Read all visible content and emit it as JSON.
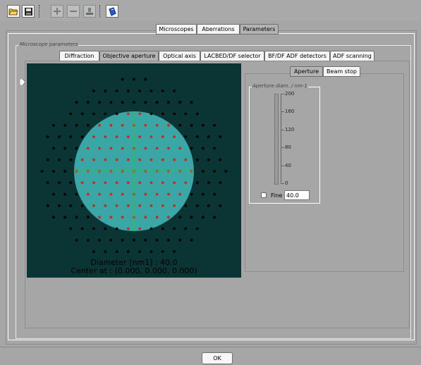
{
  "toolbar": {
    "buttons": [
      {
        "icon": "open-folder-icon",
        "enabled": true
      },
      {
        "icon": "save-disk-icon",
        "enabled": true
      },
      {
        "icon": "add-icon",
        "enabled": false
      },
      {
        "icon": "remove-icon",
        "enabled": false
      },
      {
        "icon": "export-icon",
        "enabled": false
      },
      {
        "icon": "help-book-icon",
        "enabled": true
      }
    ]
  },
  "main_tabs": [
    {
      "label": "Microscopes",
      "selected": false
    },
    {
      "label": "Aberrations",
      "selected": false
    },
    {
      "label": "Parameters",
      "selected": true
    }
  ],
  "group": {
    "title": "Microscope parameters"
  },
  "sub_tabs": [
    {
      "label": "Diffraction",
      "selected": false
    },
    {
      "label": "Objective aperture",
      "selected": true
    },
    {
      "label": "Optical axis",
      "selected": false
    },
    {
      "label": "LACBED/DF selector",
      "selected": false
    },
    {
      "label": "BF/DF ADF detectors",
      "selected": false
    },
    {
      "label": "ADF scanning",
      "selected": false
    }
  ],
  "diagram": {
    "diameter_text": "Diameter [nm1] : 40.0",
    "center_text": "Center at : (0.000, 0.000, 0.000)",
    "colors": {
      "background": "#0b3434",
      "aperture": "#3aa6a6",
      "crosshair": "#22cc22",
      "spot_outside": "#000000",
      "spot_inside": "#cc2a1a"
    }
  },
  "right_tabs": [
    {
      "label": "Aperture",
      "selected": true
    },
    {
      "label": "Beam stop",
      "selected": false
    }
  ],
  "aperture_group": {
    "title": "Aperture diam. / nm-1",
    "ticks": [
      "200",
      "160",
      "120",
      "80",
      "40",
      "0"
    ],
    "fine_label": "Fine",
    "fine_checked": false,
    "value": "40.0"
  },
  "ok_label": "OK"
}
